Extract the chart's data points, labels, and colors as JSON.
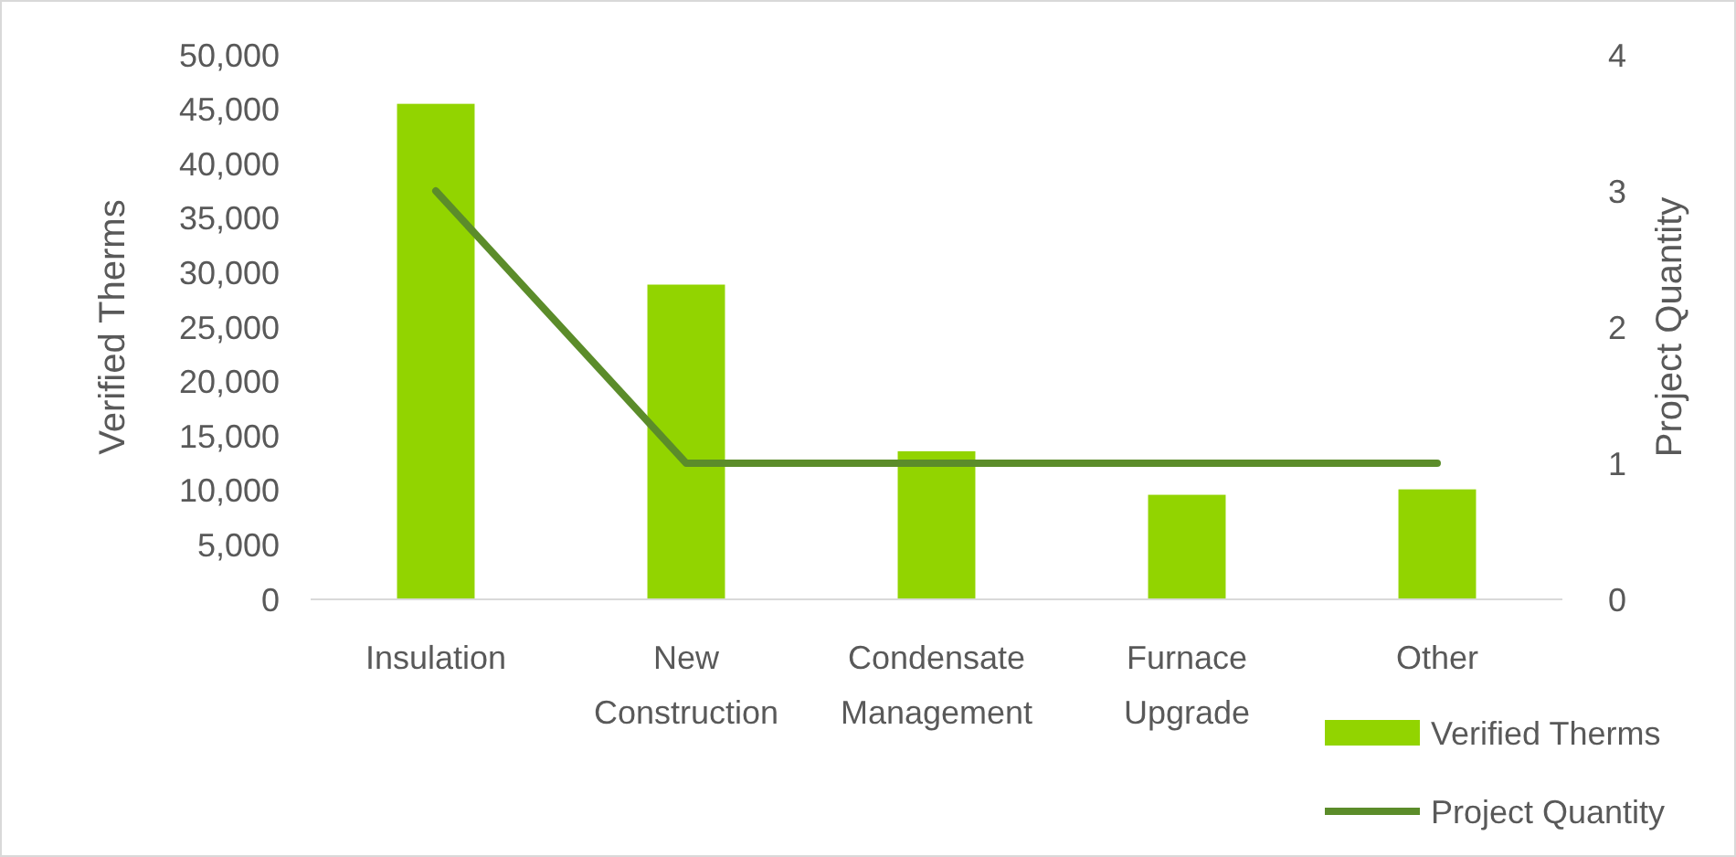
{
  "chart_data": {
    "type": "bar",
    "categories": [
      "Insulation",
      "New Construction",
      "Condensate Management",
      "Furnace Upgrade",
      "Other"
    ],
    "series": [
      {
        "name": "Verified Therms",
        "color": "#92d400",
        "values": [
          45500,
          28900,
          13600,
          9600,
          10100
        ]
      },
      {
        "name": "Project Quantity",
        "type": "line",
        "axis": "y2",
        "color": "#5b8c2a",
        "values": [
          3,
          1,
          1,
          1,
          1
        ]
      }
    ],
    "ylabel": "Verified Therms",
    "y2label": "Project Quantity",
    "ylim": [
      0,
      50000
    ],
    "yticks": [
      {
        "value": 0,
        "label": "0"
      },
      {
        "value": 5000,
        "label": "5,000"
      },
      {
        "value": 10000,
        "label": "10,000"
      },
      {
        "value": 15000,
        "label": "15,000"
      },
      {
        "value": 20000,
        "label": "20,000"
      },
      {
        "value": 25000,
        "label": "25,000"
      },
      {
        "value": 30000,
        "label": "30,000"
      },
      {
        "value": 35000,
        "label": "35,000"
      },
      {
        "value": 40000,
        "label": "40,000"
      },
      {
        "value": 45000,
        "label": "45,000"
      },
      {
        "value": 50000,
        "label": "50,000"
      }
    ],
    "y2lim": [
      0,
      4
    ],
    "y2ticks": [
      0,
      1,
      2,
      3,
      4
    ],
    "legend": "bottom right",
    "marker": "none",
    "line_style": "solid"
  }
}
